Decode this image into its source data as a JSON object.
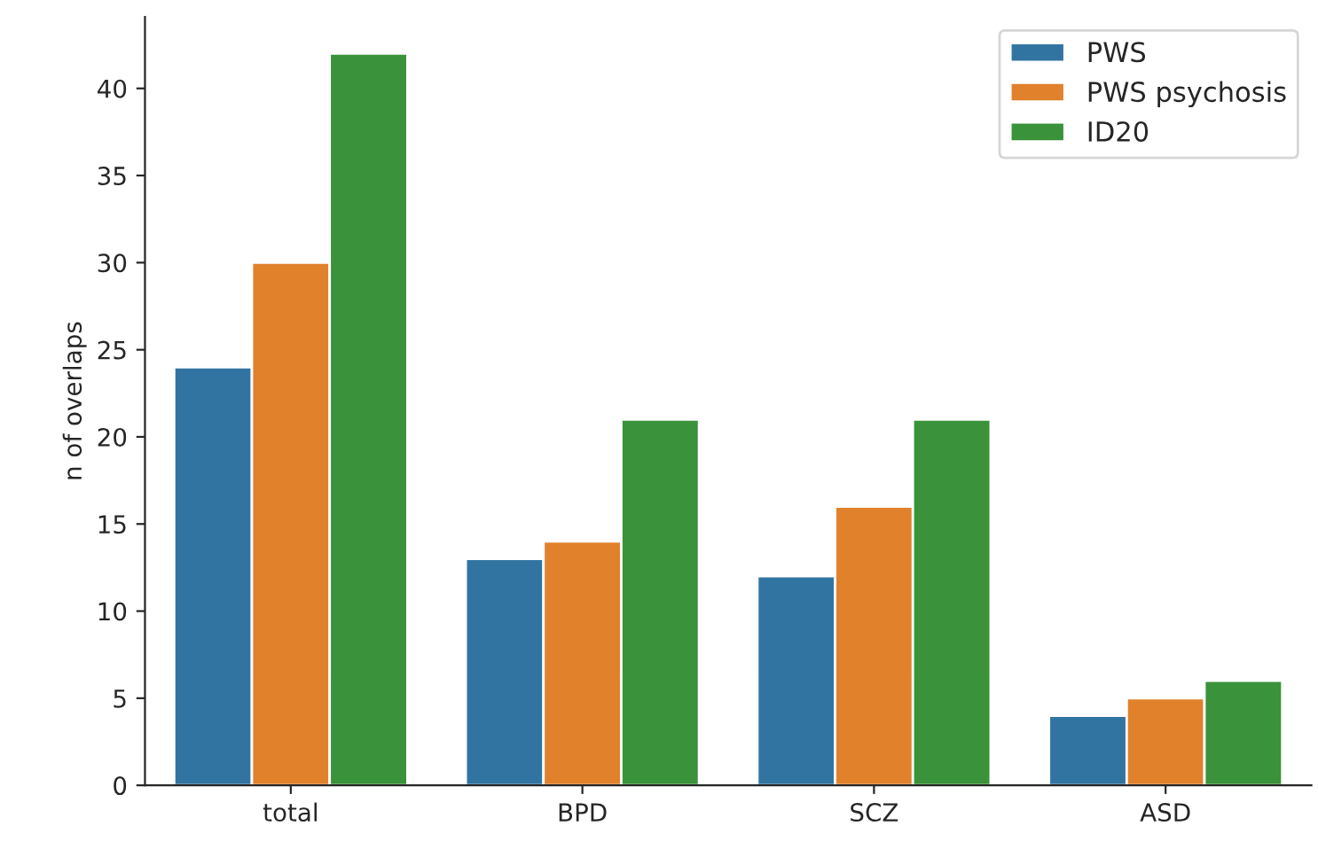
{
  "chart_data": {
    "type": "bar",
    "ylabel": "n of overlaps",
    "categories": [
      "total",
      "BPD",
      "SCZ",
      "ASD"
    ],
    "series": [
      {
        "name": "PWS",
        "color": "#3274a1",
        "values": [
          24,
          13,
          12,
          4
        ]
      },
      {
        "name": "PWS psychosis",
        "color": "#e1812c",
        "values": [
          30,
          14,
          16,
          5
        ]
      },
      {
        "name": "ID20",
        "color": "#3a923a",
        "values": [
          42,
          21,
          21,
          6
        ]
      }
    ],
    "ylim": [
      0,
      44.1
    ],
    "yticks": [
      0,
      5,
      10,
      15,
      20,
      25,
      30,
      35,
      40
    ],
    "grid": false,
    "legend": "top right"
  }
}
